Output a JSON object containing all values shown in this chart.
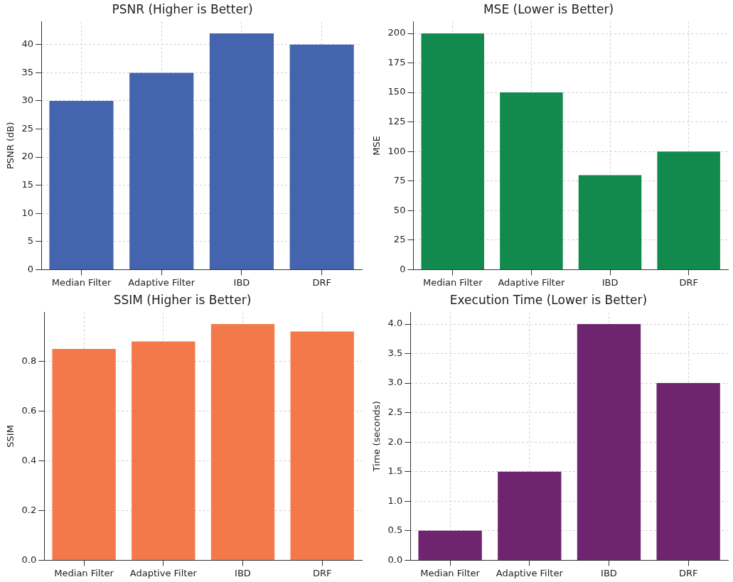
{
  "chart_data": [
    {
      "type": "bar",
      "title": "PSNR (Higher is Better)",
      "ylabel": "PSNR (dB)",
      "categories": [
        "Median Filter",
        "Adaptive Filter",
        "IBD",
        "DRF"
      ],
      "values": [
        30,
        35,
        42,
        40
      ],
      "color": "#4464ad",
      "ylim": [
        0,
        44.1
      ],
      "yticks": [
        0,
        5,
        10,
        15,
        20,
        25,
        30,
        35,
        40
      ],
      "grid": true
    },
    {
      "type": "bar",
      "title": "MSE (Lower is Better)",
      "ylabel": "MSE",
      "categories": [
        "Median Filter",
        "Adaptive Filter",
        "IBD",
        "DRF"
      ],
      "values": [
        200,
        150,
        80,
        100
      ],
      "color": "#138a4d",
      "ylim": [
        0,
        210
      ],
      "yticks": [
        0,
        25,
        50,
        75,
        100,
        125,
        150,
        175,
        200
      ],
      "grid": true
    },
    {
      "type": "bar",
      "title": "SSIM (Higher is Better)",
      "ylabel": "SSIM",
      "categories": [
        "Median Filter",
        "Adaptive Filter",
        "IBD",
        "DRF"
      ],
      "values": [
        0.85,
        0.88,
        0.95,
        0.92
      ],
      "color": "#f4794a",
      "ylim": [
        0,
        0.9975
      ],
      "yticks": [
        {
          "value": 0,
          "label": "0.0"
        },
        0.2,
        0.4,
        0.6,
        0.8
      ],
      "grid": true
    },
    {
      "type": "bar",
      "title": "Execution Time (Lower is Better)",
      "ylabel": "Time (seconds)",
      "categories": [
        "Median Filter",
        "Adaptive Filter",
        "IBD",
        "DRF"
      ],
      "values": [
        0.5,
        1.5,
        4.0,
        3.0
      ],
      "color": "#6f2470",
      "ylim": [
        0,
        4.2
      ],
      "yticks": [
        {
          "value": 0,
          "label": "0.0"
        },
        0.5,
        {
          "value": 1,
          "label": "1.0"
        },
        1.5,
        {
          "value": 2,
          "label": "2.0"
        },
        2.5,
        {
          "value": 3,
          "label": "3.0"
        },
        3.5,
        {
          "value": 4,
          "label": "4.0"
        }
      ],
      "grid": true
    }
  ]
}
